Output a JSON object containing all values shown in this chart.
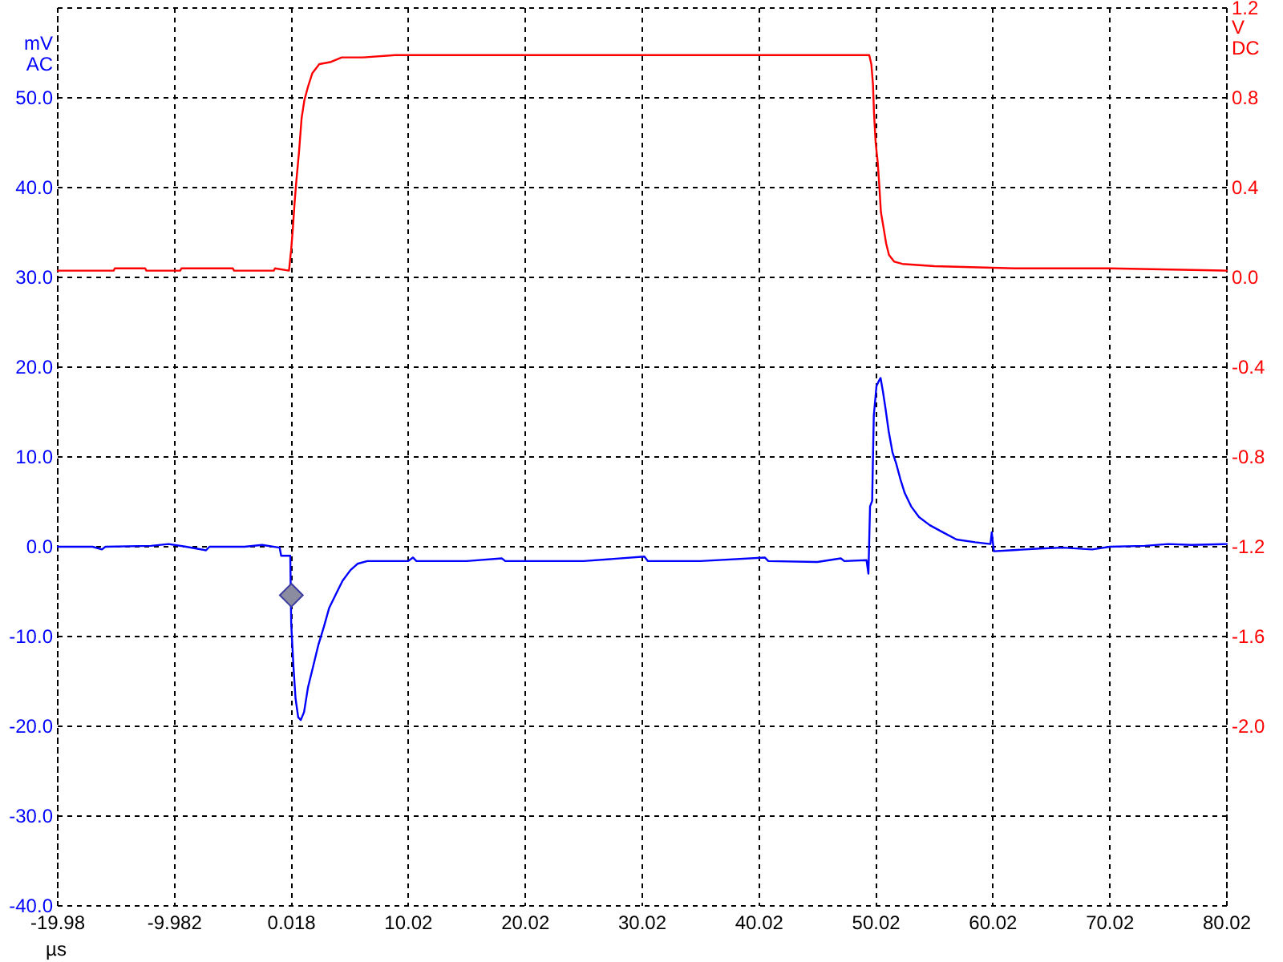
{
  "chart_data": {
    "type": "line",
    "xlabel": "µs",
    "ylabel": "mV AC",
    "y2label": "V DC",
    "xlim": [
      -19.98,
      80.02
    ],
    "xticks": [
      -19.98,
      -9.982,
      0.018,
      10.02,
      20.02,
      30.02,
      40.02,
      50.02,
      60.02,
      70.02,
      80.02
    ],
    "ylim": [
      -40,
      60
    ],
    "yticks": [
      {
        "value": -40,
        "label": "-40.0"
      },
      {
        "value": -30,
        "label": "-30.0"
      },
      {
        "value": -20,
        "label": "-20.0"
      },
      {
        "value": -10,
        "label": "-10.0"
      },
      {
        "value": 0,
        "label": "0.0"
      },
      {
        "value": 10,
        "label": "10.0"
      },
      {
        "value": 20,
        "label": "20.0"
      },
      {
        "value": 30,
        "label": "30.0"
      },
      {
        "value": 40,
        "label": "40.0"
      },
      {
        "value": 50,
        "label": "50.0"
      },
      {
        "value": 60,
        "label": null
      }
    ],
    "y2lim": [
      -2.8,
      1.2
    ],
    "y2ticks": [
      {
        "value": -2.8,
        "label": null
      },
      {
        "value": -2.4,
        "label": null
      },
      {
        "value": -2,
        "label": "-2.0"
      },
      -1.6,
      -1.2,
      -0.8,
      -0.4,
      {
        "value": 0,
        "label": "0.0"
      },
      0.4,
      0.8,
      1.2
    ],
    "grid": true,
    "series": [
      {
        "color": "#ff0000",
        "axis": "y2",
        "x": [
          -19.98,
          -15.2,
          -15.1,
          -12.5,
          -12.4,
          -9.5,
          -9.4,
          -5.0,
          -4.9,
          -1.5,
          -1.4,
          -0.2,
          -0.02,
          0.12,
          0.29,
          0.43,
          0.66,
          0.88,
          1.12,
          1.43,
          1.8,
          2.39,
          3.4,
          4.31,
          6.14,
          8.88,
          12.0,
          20.0,
          30.0,
          40.0,
          49.43,
          49.61,
          49.75,
          49.84,
          49.98,
          50.16,
          50.29,
          50.43,
          50.66,
          50.88,
          51.12,
          51.57,
          52.26,
          55.0,
          61.84,
          70.0,
          80.02
        ],
        "values": [
          0.03,
          0.03,
          0.04,
          0.04,
          0.03,
          0.03,
          0.04,
          0.04,
          0.03,
          0.03,
          0.04,
          0.03,
          0.12,
          0.21,
          0.34,
          0.43,
          0.56,
          0.71,
          0.79,
          0.85,
          0.91,
          0.95,
          0.96,
          0.98,
          0.98,
          0.99,
          0.99,
          0.99,
          0.99,
          0.99,
          0.99,
          0.95,
          0.86,
          0.73,
          0.6,
          0.51,
          0.41,
          0.29,
          0.22,
          0.15,
          0.1,
          0.07,
          0.06,
          0.05,
          0.04,
          0.04,
          0.03
        ]
      },
      {
        "color": "#0000ff",
        "x": [
          -19.98,
          -17.0,
          -16.2,
          -15.9,
          -12.0,
          -10.5,
          -9.0,
          -7.3,
          -7.0,
          -4.0,
          -2.5,
          -1.0,
          -0.87,
          -0.09,
          -0.01,
          0.18,
          0.36,
          0.59,
          0.81,
          1.09,
          1.42,
          1.87,
          2.32,
          2.79,
          3.24,
          3.92,
          4.38,
          5.06,
          5.66,
          6.5,
          10.0,
          10.4,
          10.7,
          15.0,
          18.0,
          18.3,
          25.0,
          30.2,
          30.5,
          35.0,
          40.5,
          40.8,
          45.0,
          47.0,
          47.3,
          49.2,
          49.36,
          49.5,
          49.68,
          49.82,
          50.05,
          50.27,
          50.4,
          50.6,
          50.81,
          51.09,
          51.42,
          51.73,
          52.1,
          52.46,
          53.01,
          53.69,
          54.61,
          55.75,
          56.9,
          58.49,
          59.8,
          59.91,
          60.09,
          61.46,
          64.0,
          66.0,
          68.5,
          70.0,
          73.0,
          75.0,
          77.0,
          80.02
        ],
        "values": [
          0.0,
          0.0,
          -0.3,
          0.0,
          0.1,
          0.3,
          0.0,
          -0.4,
          0.0,
          0.0,
          0.2,
          -0.1,
          -1.0,
          -1.0,
          -8.6,
          -13.3,
          -16.9,
          -19.0,
          -19.3,
          -18.4,
          -15.7,
          -13.3,
          -10.9,
          -8.9,
          -6.8,
          -5.0,
          -3.8,
          -2.6,
          -1.9,
          -1.6,
          -1.6,
          -1.2,
          -1.6,
          -1.6,
          -1.3,
          -1.6,
          -1.6,
          -1.1,
          -1.6,
          -1.6,
          -1.2,
          -1.6,
          -1.7,
          -1.3,
          -1.6,
          -1.5,
          -3.0,
          4.5,
          5.1,
          14.6,
          17.9,
          18.5,
          18.8,
          17.3,
          15.5,
          12.9,
          10.5,
          9.3,
          7.5,
          6.0,
          4.5,
          3.3,
          2.4,
          1.6,
          0.8,
          0.5,
          0.3,
          1.6,
          -0.5,
          -0.4,
          -0.2,
          -0.1,
          -0.3,
          0.0,
          0.1,
          0.3,
          0.2,
          0.3
        ]
      },
      {
        "type": "scatter",
        "color": "#8c8ca0",
        "marker": "diamond",
        "x": [
          0.0
        ],
        "values": [
          -5.4
        ]
      }
    ]
  }
}
